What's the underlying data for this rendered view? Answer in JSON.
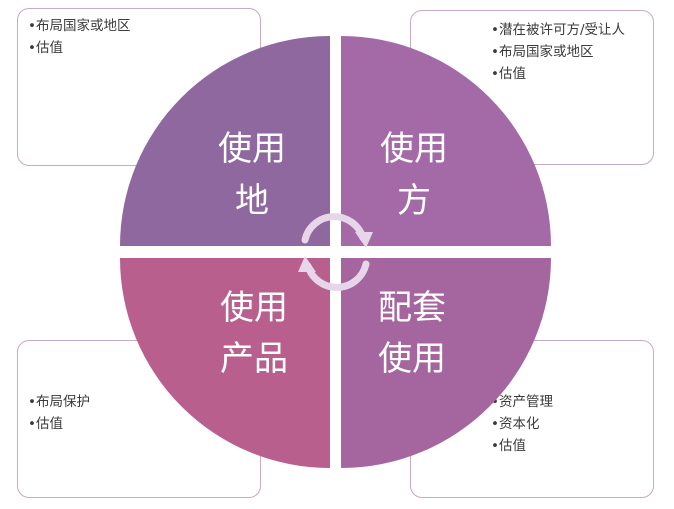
{
  "colors": {
    "top_left": "#8e689f",
    "top_right": "#a46aa8",
    "bottom_left": "#b85f8e",
    "bottom_right": "#a5659f",
    "box_border": "#c9a9c3",
    "arrow": "#e7d6e9"
  },
  "quadrants": {
    "top_left": {
      "line1": "使用",
      "line2": "地"
    },
    "top_right": {
      "line1": "使用",
      "line2": "方"
    },
    "bottom_left": {
      "line1": "使用",
      "line2": "产品"
    },
    "bottom_right": {
      "line1": "配套",
      "line2": "使用"
    }
  },
  "boxes": {
    "top_left": {
      "items": [
        "布局国家或地区",
        "估值"
      ]
    },
    "top_right": {
      "items": [
        "潜在被许可方/受让人",
        "布局国家或地区",
        "估值"
      ]
    },
    "bottom_left": {
      "items": [
        "布局保护",
        "估值"
      ]
    },
    "bottom_right": {
      "items": [
        "资产管理",
        "资本化",
        "估值"
      ]
    }
  },
  "center_icon": "cycle-arrows-icon"
}
